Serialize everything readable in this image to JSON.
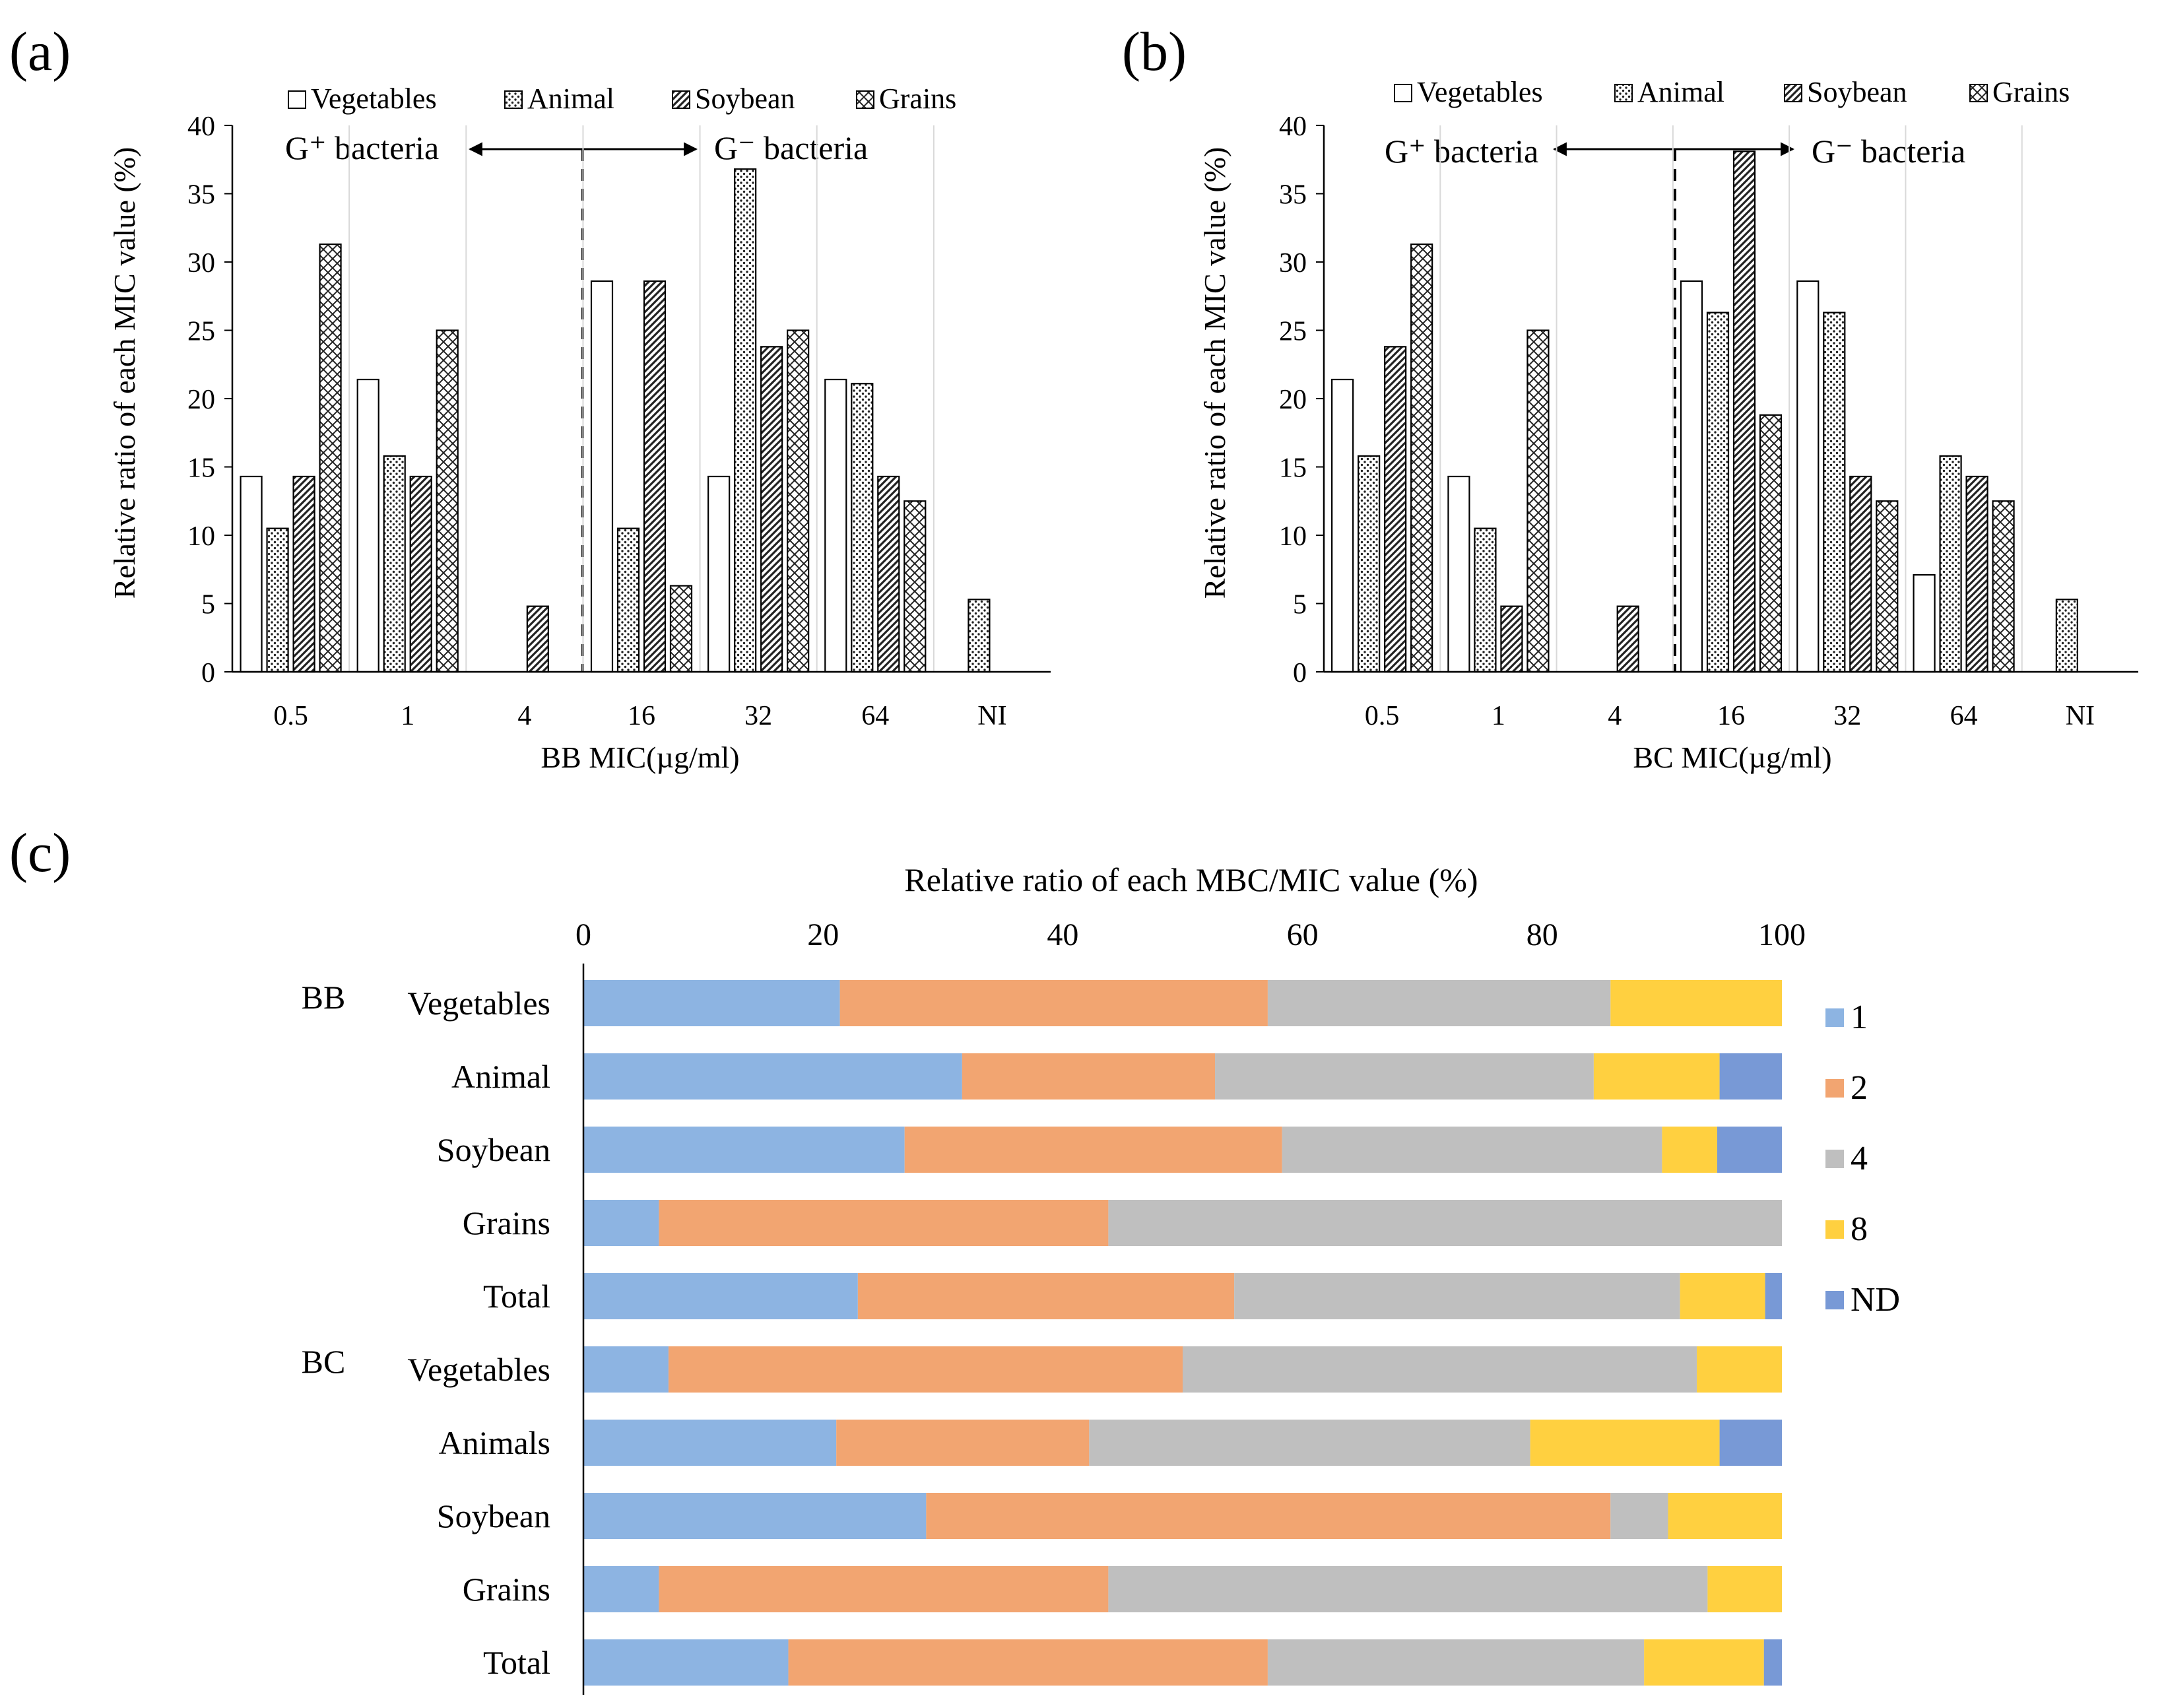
{
  "panels": {
    "a": {
      "label": "(a)",
      "xlabel": "BB MIC(µg/ml)",
      "ylabel": "Relative ratio of  each MIC value (%)",
      "g_pos": "G⁺ bacteria",
      "g_neg": "G⁻ bacteria"
    },
    "b": {
      "label": "(b)",
      "xlabel": "BC MIC(µg/ml)",
      "ylabel": "Relative ratio of  each MIC value (%)",
      "g_pos": "G⁺ bacteria",
      "g_neg": "G⁻ bacteria"
    },
    "c": {
      "label": "(c)",
      "axis_title": "Relative ratio of each MBC/MIC value (%)",
      "group_bb": "BB",
      "group_bc": "BC"
    }
  },
  "chart_data": [
    {
      "id": "a",
      "type": "bar",
      "title": "",
      "xlabel": "BB MIC(µg/ml)",
      "ylabel": "Relative ratio of  each MIC value (%)",
      "ylim": [
        0,
        40
      ],
      "yticks": [
        "0",
        "5",
        "10",
        "15",
        "20",
        "25",
        "30",
        "35",
        "40"
      ],
      "categories": [
        "0.5",
        "1",
        "4",
        "16",
        "32",
        "64",
        "NI"
      ],
      "series": [
        {
          "name": "Vegetables",
          "values": [
            14.3,
            21.4,
            0,
            28.6,
            14.3,
            21.4,
            0
          ]
        },
        {
          "name": "Animal",
          "values": [
            10.5,
            15.8,
            0,
            10.5,
            36.8,
            21.1,
            5.3
          ]
        },
        {
          "name": "Soybean",
          "values": [
            14.3,
            14.3,
            4.8,
            28.6,
            23.8,
            14.3,
            0
          ]
        },
        {
          "name": "Grains",
          "values": [
            31.3,
            25.0,
            0,
            6.3,
            25.0,
            12.5,
            0
          ]
        }
      ]
    },
    {
      "id": "b",
      "type": "bar",
      "title": "",
      "xlabel": "BC MIC(µg/ml)",
      "ylabel": "Relative ratio of  each MIC value (%)",
      "ylim": [
        0,
        40
      ],
      "yticks": [
        "0",
        "5",
        "10",
        "15",
        "20",
        "25",
        "30",
        "35",
        "40"
      ],
      "categories": [
        "0.5",
        "1",
        "4",
        "16",
        "32",
        "64",
        "NI"
      ],
      "series": [
        {
          "name": "Vegetables",
          "values": [
            21.4,
            14.3,
            0,
            28.6,
            28.6,
            7.1,
            0
          ]
        },
        {
          "name": "Animal",
          "values": [
            15.8,
            10.5,
            0,
            26.3,
            26.3,
            15.8,
            5.3
          ]
        },
        {
          "name": "Soybean",
          "values": [
            23.8,
            4.8,
            4.8,
            38.1,
            14.3,
            14.3,
            0
          ]
        },
        {
          "name": "Grains",
          "values": [
            31.3,
            25.0,
            0,
            18.8,
            12.5,
            12.5,
            0
          ]
        }
      ]
    },
    {
      "id": "c",
      "type": "bar",
      "orientation": "horizontal-stacked",
      "title": "Relative ratio of each MBC/MIC value (%)",
      "xlim": [
        0,
        100
      ],
      "xticks": [
        "0",
        "20",
        "40",
        "60",
        "80",
        "100"
      ],
      "categories": [
        "Vegetables",
        "Animal",
        "Soybean",
        "Grains",
        "Total",
        "Vegetables",
        "Animals",
        "Soybean",
        "Grains",
        "Total"
      ],
      "groups": [
        {
          "name": "BB",
          "rows": [
            0,
            4
          ]
        },
        {
          "name": "BC",
          "rows": [
            5,
            9
          ]
        }
      ],
      "series": [
        {
          "name": "1",
          "color": "#8db4e2",
          "values": [
            21.4,
            31.6,
            26.8,
            6.3,
            22.9,
            7.1,
            21.1,
            28.6,
            6.3,
            17.1
          ]
        },
        {
          "name": "2",
          "color": "#f2a571",
          "values": [
            35.7,
            21.1,
            31.5,
            37.5,
            31.4,
            42.9,
            21.1,
            57.1,
            37.5,
            40.0
          ]
        },
        {
          "name": "4",
          "color": "#bfbfbf",
          "values": [
            28.6,
            31.6,
            31.7,
            56.2,
            37.2,
            42.9,
            36.8,
            4.8,
            50.0,
            31.4
          ]
        },
        {
          "name": "8",
          "color": "#ffd040",
          "values": [
            14.3,
            10.5,
            4.6,
            0,
            7.1,
            7.1,
            15.8,
            9.5,
            6.2,
            10.0
          ]
        },
        {
          "name": "ND",
          "color": "#7899d6",
          "values": [
            0,
            5.2,
            5.4,
            0,
            1.4,
            0,
            5.2,
            0,
            0,
            1.5
          ]
        }
      ]
    }
  ]
}
